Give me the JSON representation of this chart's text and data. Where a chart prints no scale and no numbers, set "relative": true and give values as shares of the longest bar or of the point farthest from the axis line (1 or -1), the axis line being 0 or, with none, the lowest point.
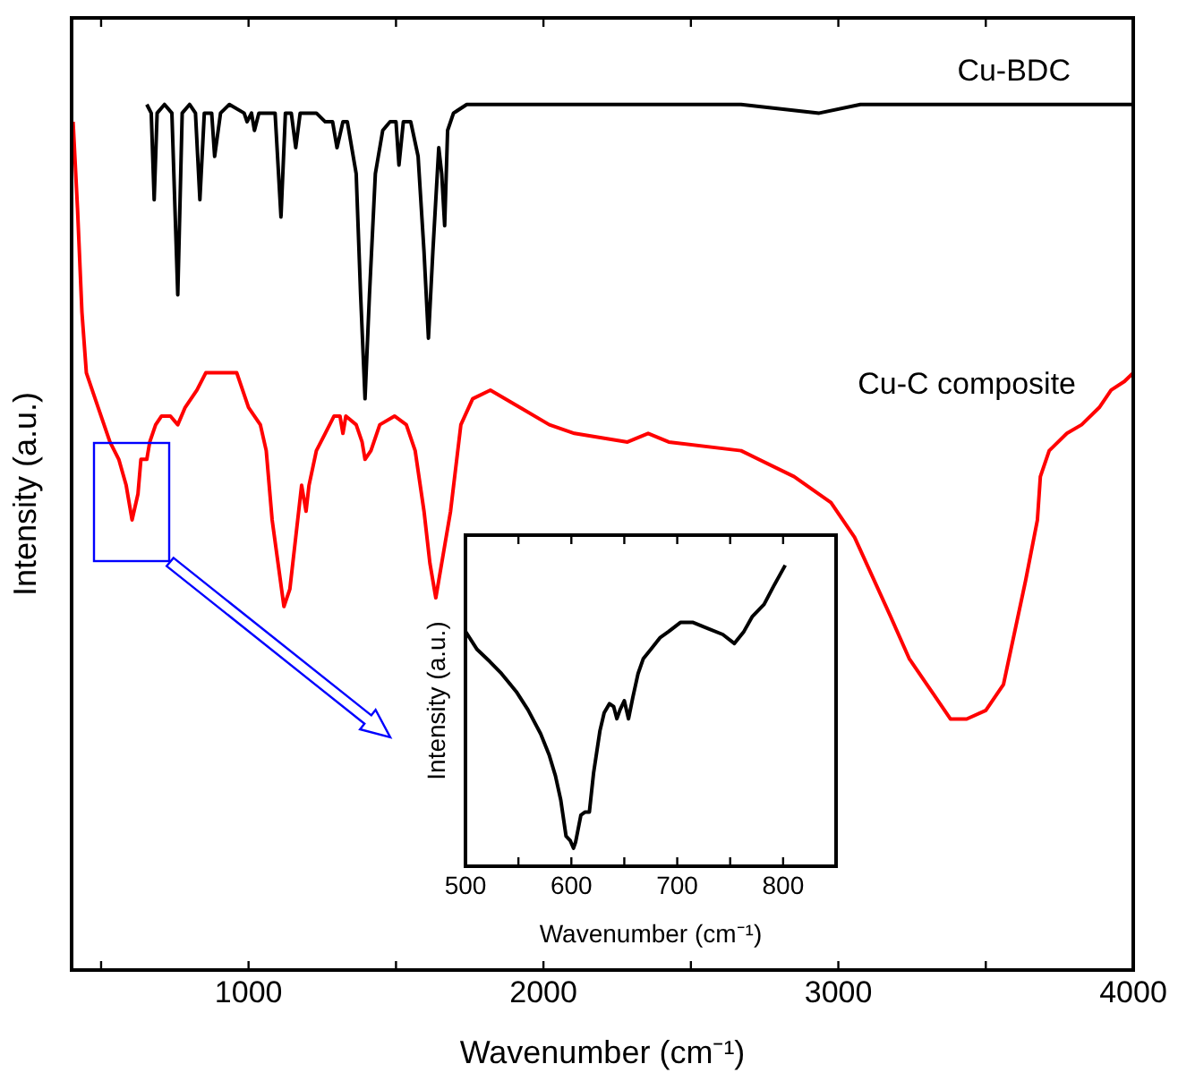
{
  "chart_data": [
    {
      "type": "line",
      "xlabel": "Wavenumber (cm⁻¹)",
      "ylabel": "Intensity (a.u.)",
      "relative": true,
      "marker": "none",
      "xlim": [
        400,
        4000
      ],
      "xticks": [
        {
          "value": 500,
          "label": null
        },
        1000,
        {
          "value": 1500,
          "label": null
        },
        2000,
        {
          "value": 2500,
          "label": null
        },
        3000,
        {
          "value": 3500,
          "label": null
        },
        4000
      ],
      "series": [
        {
          "name": "Cu-BDC",
          "color": "#000000",
          "x": [
            655,
            670,
            680,
            690,
            715,
            740,
            760,
            775,
            800,
            820,
            835,
            850,
            865,
            875,
            885,
            905,
            935,
            985,
            995,
            1010,
            1020,
            1035,
            1070,
            1090,
            1110,
            1125,
            1145,
            1160,
            1175,
            1230,
            1260,
            1285,
            1300,
            1320,
            1335,
            1365,
            1380,
            1395,
            1410,
            1430,
            1440,
            1455,
            1480,
            1500,
            1510,
            1525,
            1550,
            1575,
            1595,
            1610,
            1625,
            1645,
            1655,
            1665,
            1675,
            1695,
            1740,
            1880,
            2060,
            2265,
            2365,
            2670,
            2935,
            3075,
            3380,
            4000
          ],
          "values": [
            1.0,
            0.99,
            0.89,
            0.99,
            1.0,
            0.99,
            0.78,
            0.99,
            1.0,
            0.99,
            0.89,
            0.99,
            0.99,
            0.99,
            0.94,
            0.99,
            1.0,
            0.99,
            0.98,
            0.99,
            0.97,
            0.99,
            0.99,
            0.99,
            0.87,
            0.99,
            0.99,
            0.95,
            0.99,
            0.99,
            0.98,
            0.98,
            0.95,
            0.98,
            0.98,
            0.92,
            0.78,
            0.66,
            0.78,
            0.92,
            0.94,
            0.97,
            0.98,
            0.98,
            0.93,
            0.98,
            0.98,
            0.94,
            0.83,
            0.73,
            0.83,
            0.95,
            0.92,
            0.86,
            0.97,
            0.99,
            1.0,
            1.0,
            1.0,
            1.0,
            1.0,
            1.0,
            0.99,
            1.0,
            1.0,
            1.0
          ]
        },
        {
          "name": "Cu-C composite",
          "color": "#ff0000",
          "x": [
            405,
            420,
            435,
            450,
            490,
            530,
            560,
            585,
            605,
            625,
            635,
            655,
            665,
            685,
            705,
            735,
            760,
            785,
            825,
            855,
            925,
            960,
            1000,
            1040,
            1060,
            1080,
            1120,
            1140,
            1160,
            1180,
            1195,
            1205,
            1230,
            1260,
            1290,
            1310,
            1320,
            1330,
            1365,
            1385,
            1395,
            1415,
            1445,
            1495,
            1535,
            1565,
            1595,
            1615,
            1635,
            1665,
            1685,
            1720,
            1760,
            1820,
            1920,
            2020,
            2105,
            2285,
            2355,
            2425,
            2670,
            2850,
            2975,
            3055,
            3175,
            3240,
            3320,
            3380,
            3435,
            3500,
            3560,
            3635,
            3675,
            3685,
            3715,
            3775,
            3825,
            3885,
            3925,
            3970,
            4000
          ],
          "values": [
            0.98,
            0.88,
            0.76,
            0.69,
            0.65,
            0.61,
            0.59,
            0.56,
            0.52,
            0.55,
            0.59,
            0.59,
            0.61,
            0.63,
            0.64,
            0.64,
            0.63,
            0.65,
            0.67,
            0.69,
            0.69,
            0.69,
            0.65,
            0.63,
            0.6,
            0.52,
            0.42,
            0.44,
            0.5,
            0.56,
            0.53,
            0.56,
            0.6,
            0.62,
            0.64,
            0.64,
            0.62,
            0.64,
            0.63,
            0.61,
            0.59,
            0.6,
            0.63,
            0.64,
            0.63,
            0.6,
            0.53,
            0.47,
            0.43,
            0.49,
            0.53,
            0.63,
            0.66,
            0.67,
            0.65,
            0.63,
            0.62,
            0.61,
            0.62,
            0.61,
            0.6,
            0.57,
            0.54,
            0.5,
            0.41,
            0.36,
            0.32,
            0.29,
            0.29,
            0.3,
            0.33,
            0.45,
            0.52,
            0.57,
            0.6,
            0.62,
            0.63,
            0.65,
            0.67,
            0.68,
            0.69
          ]
        }
      ]
    },
    {
      "type": "line",
      "xlabel": "Wavenumber (cm⁻¹)",
      "ylabel": "Intensity (a.u.)",
      "relative": true,
      "marker": "none",
      "xlim": [
        500,
        850
      ],
      "xticks": [
        500,
        {
          "value": 550,
          "label": null
        },
        600,
        {
          "value": 650,
          "label": null
        },
        700,
        {
          "value": 750,
          "label": null
        },
        800,
        {
          "value": 850,
          "label": null
        }
      ],
      "series": [
        {
          "color": "#000000",
          "x": [
            500,
            511,
            523,
            534,
            548,
            559,
            571,
            579,
            585,
            590,
            595,
            599,
            602,
            604,
            609,
            613,
            617,
            621,
            627,
            631,
            636,
            640,
            643,
            646,
            650,
            654,
            658,
            663,
            668,
            675,
            684,
            692,
            703,
            715,
            729,
            743,
            754,
            763,
            771,
            782,
            791,
            802
          ],
          "values": [
            0.78,
            0.72,
            0.68,
            0.64,
            0.58,
            0.52,
            0.44,
            0.37,
            0.3,
            0.22,
            0.1,
            0.085,
            0.06,
            0.08,
            0.17,
            0.18,
            0.18,
            0.31,
            0.45,
            0.51,
            0.54,
            0.53,
            0.49,
            0.52,
            0.55,
            0.49,
            0.56,
            0.64,
            0.69,
            0.72,
            0.76,
            0.78,
            0.81,
            0.81,
            0.79,
            0.77,
            0.74,
            0.78,
            0.83,
            0.87,
            0.93,
            1.0
          ]
        }
      ]
    }
  ]
}
